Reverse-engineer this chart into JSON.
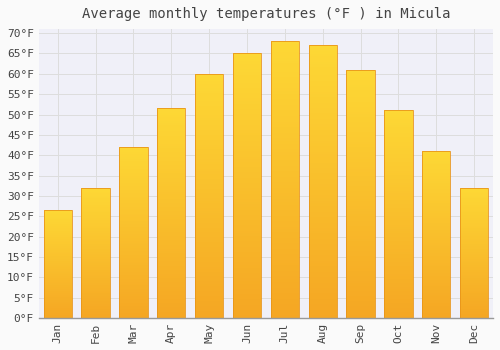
{
  "title": "Average monthly temperatures (°F ) in Micula",
  "months": [
    "Jan",
    "Feb",
    "Mar",
    "Apr",
    "May",
    "Jun",
    "Jul",
    "Aug",
    "Sep",
    "Oct",
    "Nov",
    "Dec"
  ],
  "values": [
    26.5,
    32.0,
    42.0,
    51.5,
    60.0,
    65.0,
    68.0,
    67.0,
    61.0,
    51.0,
    41.0,
    32.0
  ],
  "bar_color_bottom": "#F5A623",
  "bar_color_top": "#FDD835",
  "bar_edge_color": "#E8951A",
  "background_color": "#FAFAFA",
  "plot_bg_color": "#F0F0F8",
  "grid_color": "#DDDDDD",
  "text_color": "#444444",
  "ylim": [
    0,
    71
  ],
  "yticks": [
    0,
    5,
    10,
    15,
    20,
    25,
    30,
    35,
    40,
    45,
    50,
    55,
    60,
    65,
    70
  ],
  "title_fontsize": 10,
  "tick_fontsize": 8,
  "font_family": "monospace",
  "bar_width": 0.75
}
